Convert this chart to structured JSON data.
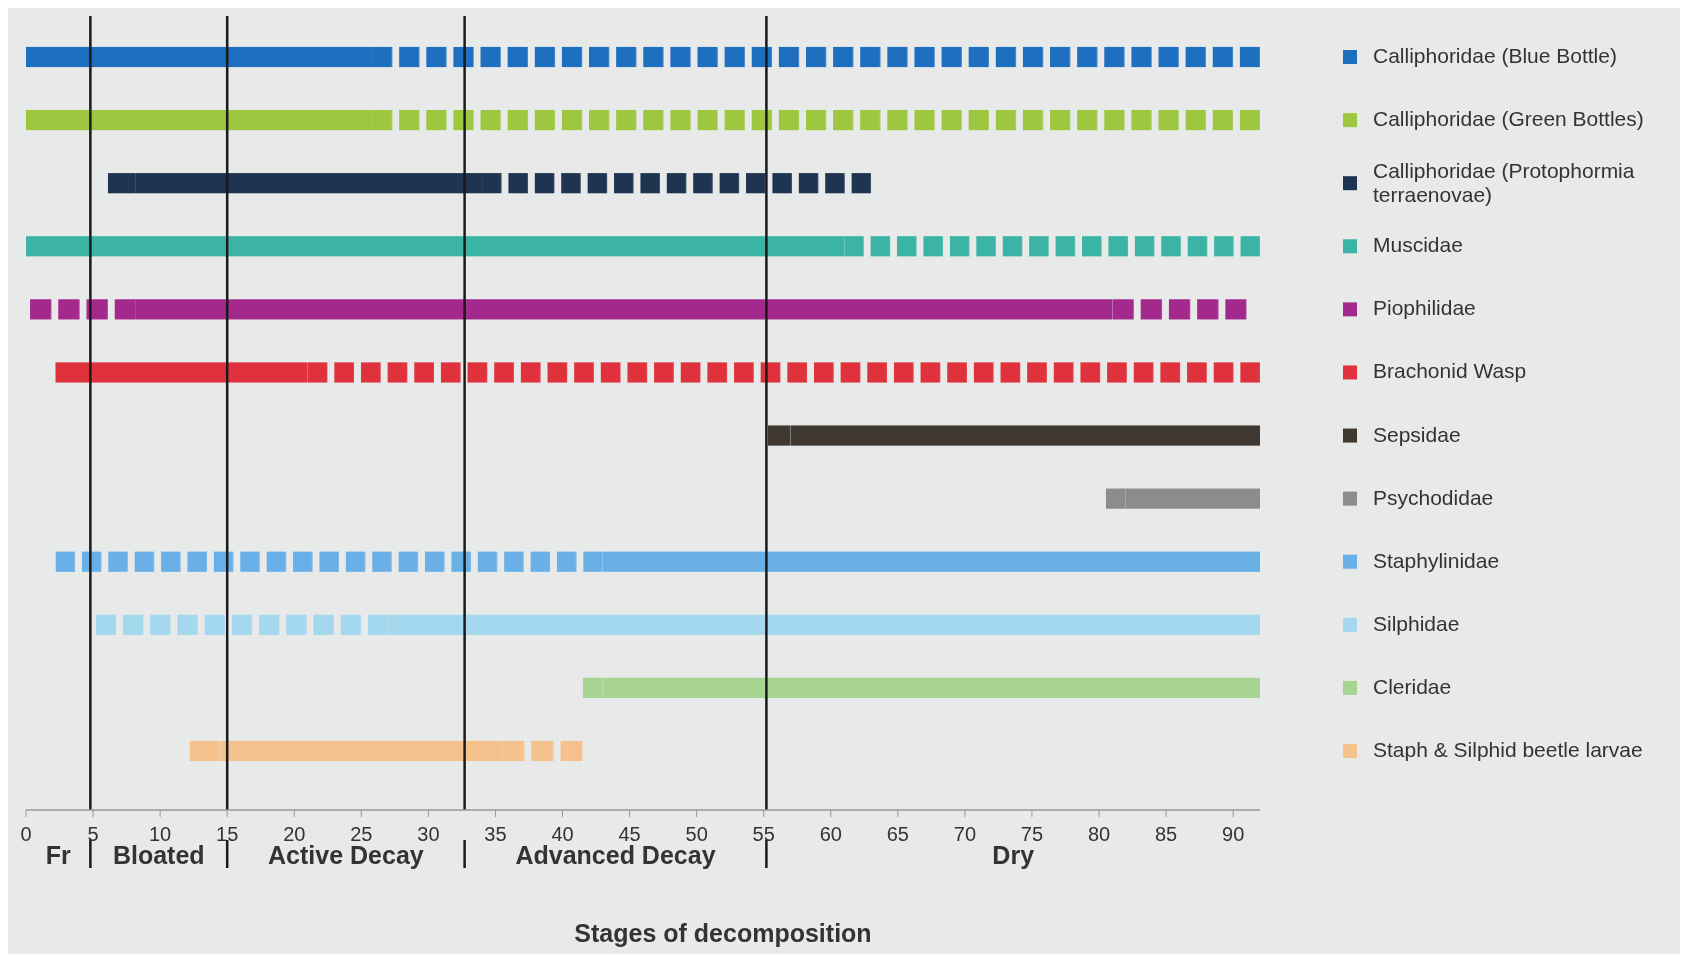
{
  "chart_data": {
    "type": "bar",
    "orientation": "horizontal",
    "categories": [
      null,
      null,
      null,
      null,
      null,
      null,
      null,
      null,
      null,
      null,
      null,
      null
    ],
    "xlim": [
      0,
      92
    ],
    "xticks": [
      0,
      5,
      10,
      15,
      20,
      25,
      30,
      35,
      40,
      45,
      50,
      55,
      60,
      65,
      70,
      75,
      80,
      85,
      90
    ],
    "xlabel": "Stages of decomposition",
    "legend": "right",
    "ref_lines": [
      {
        "axis": "x",
        "value": 4.8,
        "color": "#1a1a1a"
      },
      {
        "axis": "x",
        "value": 15,
        "color": "#1a1a1a"
      },
      {
        "axis": "x",
        "value": 32.7,
        "color": "#1a1a1a"
      },
      {
        "axis": "x",
        "value": 55.2,
        "color": "#1a1a1a"
      }
    ],
    "annotations": [
      "Fr",
      "Bloated",
      "Active Decay",
      "Advanced Decay",
      "Dry"
    ],
    "series": [
      {
        "name": "Calliphoridae (Blue Bottle)",
        "color": "#1f6fc0",
        "base": [
          0,
          null,
          null,
          null,
          null,
          null,
          null,
          null,
          null,
          null,
          null,
          null
        ],
        "values": [
          25.8,
          null,
          null,
          null,
          null,
          null,
          null,
          null,
          null,
          null,
          null,
          null
        ]
      },
      {
        "name": "Calliphoridae (Green Bottles)",
        "color": "#9dc73f",
        "base": [
          null,
          0,
          null,
          null,
          null,
          null,
          null,
          null,
          null,
          null,
          null,
          null
        ],
        "values": [
          null,
          25.8,
          null,
          null,
          null,
          null,
          null,
          null,
          null,
          null,
          null,
          null
        ]
      },
      {
        "name": "Calliphoridae (Protophormia terraenovae)",
        "color": "#1e3450",
        "base": [
          null,
          null,
          8.2,
          null,
          null,
          null,
          null,
          null,
          null,
          null,
          null,
          null
        ],
        "values": [
          null,
          null,
          25.8,
          null,
          null,
          null,
          null,
          null,
          null,
          null,
          null,
          null
        ]
      },
      {
        "name": "Muscidae",
        "color": "#3bb3a5",
        "base": [
          null,
          null,
          null,
          0,
          null,
          null,
          null,
          null,
          null,
          null,
          null,
          null
        ],
        "values": [
          null,
          null,
          null,
          61,
          null,
          null,
          null,
          null,
          null,
          null,
          null,
          null
        ]
      },
      {
        "name": "Piophilidae",
        "color": "#a3298c",
        "base": [
          null,
          null,
          null,
          null,
          8.2,
          null,
          null,
          null,
          null,
          null,
          null,
          null
        ],
        "values": [
          null,
          null,
          null,
          null,
          72.8,
          null,
          null,
          null,
          null,
          null,
          null,
          null
        ]
      },
      {
        "name": "Brachonid Wasp",
        "color": "#e0323c",
        "base": [
          null,
          null,
          null,
          null,
          null,
          2.2,
          null,
          null,
          null,
          null,
          null,
          null
        ],
        "values": [
          null,
          null,
          null,
          null,
          null,
          18.8,
          null,
          null,
          null,
          null,
          null,
          null
        ]
      },
      {
        "name": "Sepsidae",
        "color": "#3e3831",
        "base": [
          null,
          null,
          null,
          null,
          null,
          null,
          57,
          null,
          null,
          null,
          null,
          null
        ],
        "values": [
          null,
          null,
          null,
          null,
          null,
          null,
          35,
          null,
          null,
          null,
          null,
          null
        ]
      },
      {
        "name": "Psychodidae",
        "color": "#8c8c8c",
        "base": [
          null,
          null,
          null,
          null,
          null,
          null,
          null,
          82,
          null,
          null,
          null,
          null
        ],
        "values": [
          null,
          null,
          null,
          null,
          null,
          null,
          null,
          10,
          null,
          null,
          null,
          null
        ]
      },
      {
        "name": "Staphylinidae",
        "color": "#6ab0e8",
        "base": [
          null,
          null,
          null,
          null,
          null,
          null,
          null,
          null,
          43,
          null,
          null,
          null
        ],
        "values": [
          null,
          null,
          null,
          null,
          null,
          null,
          null,
          null,
          49,
          null,
          null,
          null
        ]
      },
      {
        "name": "Silphidae",
        "color": "#a4d8ee",
        "base": [
          null,
          null,
          null,
          null,
          null,
          null,
          null,
          null,
          null,
          27,
          null,
          null
        ],
        "values": [
          null,
          null,
          null,
          null,
          null,
          null,
          null,
          null,
          null,
          65,
          null,
          null
        ]
      },
      {
        "name": "Cleridae",
        "color": "#a8d491",
        "base": [
          null,
          null,
          null,
          null,
          null,
          null,
          null,
          null,
          null,
          null,
          43,
          null
        ],
        "values": [
          null,
          null,
          null,
          null,
          null,
          null,
          null,
          null,
          null,
          null,
          49,
          null
        ]
      },
      {
        "name": "Staph & Silphid beetle larvae",
        "color": "#f5c28e",
        "base": [
          null,
          null,
          null,
          null,
          null,
          null,
          null,
          null,
          null,
          null,
          null,
          14.5
        ],
        "values": [
          null,
          null,
          null,
          null,
          null,
          null,
          null,
          null,
          null,
          null,
          null,
          21
        ]
      },
      {
        "line_style": "dashed",
        "colors": [
          null,
          null,
          "#1e3450",
          null,
          "#a3298c",
          null,
          "#3e3831",
          "#8c8c8c",
          "#6ab0e8",
          "#a4d8ee",
          "#a8d491",
          "#f5c28e"
        ],
        "base": [
          null,
          null,
          6.1,
          null,
          0.3,
          null,
          55.3,
          80.5,
          2.2,
          5.2,
          41.5,
          12.2
        ],
        "values": [
          null,
          null,
          2.1,
          null,
          7.9,
          null,
          1.7,
          1.5,
          40.8,
          21.8,
          1.5,
          2.3
        ]
      },
      {
        "line_style": "dashed",
        "colors": [
          "#1f6fc0",
          "#9dc73f",
          "#1e3450",
          "#3bb3a5",
          "#a3298c",
          "#e0323c",
          null,
          null,
          null,
          null,
          null,
          "#f5c28e"
        ],
        "base": [
          25.8,
          25.8,
          34,
          61,
          81,
          21,
          null,
          null,
          null,
          null,
          null,
          35.5
        ],
        "values": [
          66.2,
          66.2,
          29,
          31,
          10,
          71,
          null,
          null,
          null,
          null,
          null,
          6
        ]
      }
    ]
  }
}
